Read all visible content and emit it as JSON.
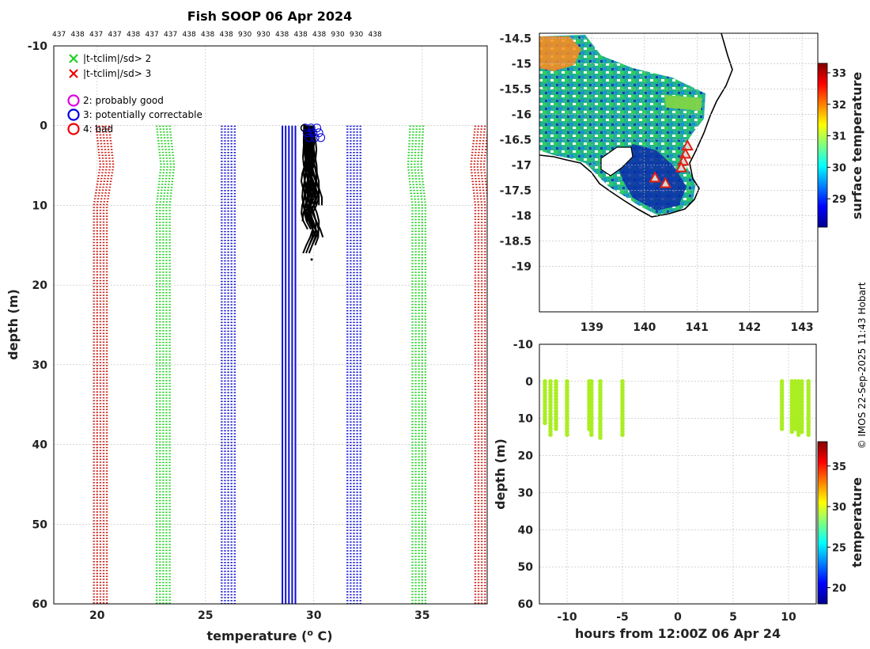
{
  "colors": {
    "bad": "#cc1a12",
    "clim2": "#1fd11f",
    "mean": "#1010d0",
    "profile": "#000000",
    "timeseries": "#aaee22",
    "land_line": "#000000",
    "flag_good": "#e000e0",
    "flag_corr": "#0000dd",
    "flag_bad": "#ee0000",
    "grid": "#bbbbbb"
  },
  "chart_data": [
    {
      "type": "line",
      "panel": "profile",
      "title": "Fish SOOP 06 Apr 2024",
      "xlabel": "temperature (",
      "xlabel_sup": "o",
      "xlabel_end": " C)",
      "ylabel": "depth (m)",
      "xlim": [
        18,
        38
      ],
      "ylim": [
        -10,
        60
      ],
      "xticks": [
        "20",
        "25",
        "30",
        "35"
      ],
      "yticks": [
        "-10",
        "0",
        "10",
        "20",
        "30",
        "40",
        "50",
        "60"
      ],
      "platform_ids": [
        "437",
        "438",
        "437",
        "437",
        "438",
        "437",
        "437",
        "438",
        "438",
        "438",
        "930",
        "930",
        "438",
        "438",
        "438",
        "930",
        "930",
        "438"
      ],
      "legend": [
        {
          "marker": "x",
          "color": "#1fd11f",
          "label": "|t-tclim|/sd> 2"
        },
        {
          "marker": "x",
          "color": "#ee0000",
          "label": "|t-tclim|/sd> 3"
        },
        {
          "marker": "o",
          "color": "#e000e0",
          "label": "2: probably good"
        },
        {
          "marker": "o",
          "color": "#0000dd",
          "label": "3: potentially correctable"
        },
        {
          "marker": "o",
          "color": "#ee0000",
          "label": "4: bad"
        }
      ],
      "series": [
        {
          "name": "clim -3sd",
          "style": "dotted",
          "color": "#cc1a12",
          "depth": [
            0,
            5,
            10,
            60
          ],
          "temperature": [
            20.3,
            20.5,
            20.2,
            20.2
          ]
        },
        {
          "name": "clim -2sd",
          "style": "dotted",
          "color": "#1fd11f",
          "depth": [
            0,
            5,
            10,
            60
          ],
          "temperature": [
            23.1,
            23.3,
            23.1,
            23.1
          ]
        },
        {
          "name": "clim mean",
          "style": "dotted",
          "color": "#1010d0",
          "depth": [
            0,
            60
          ],
          "temperature": [
            26.1,
            26.1
          ]
        },
        {
          "name": "mean",
          "style": "solid",
          "color": "#1010d0",
          "depth": [
            0,
            60
          ],
          "temperature": [
            28.9,
            28.9
          ]
        },
        {
          "name": "clim +1sd",
          "style": "dotted",
          "color": "#1010d0",
          "depth": [
            0,
            60
          ],
          "temperature": [
            31.9,
            31.9
          ]
        },
        {
          "name": "clim +2sd",
          "style": "dotted",
          "color": "#1fd11f",
          "depth": [
            0,
            5,
            10,
            60
          ],
          "temperature": [
            34.8,
            34.7,
            34.9,
            34.9
          ]
        },
        {
          "name": "clim +3sd",
          "style": "dotted",
          "color": "#cc1a12",
          "depth": [
            0,
            5,
            10,
            60
          ],
          "temperature": [
            37.8,
            37.6,
            37.8,
            37.8
          ]
        }
      ],
      "profiles_range": {
        "temperature": [
          29.4,
          30.3
        ],
        "depth": [
          0,
          16.8
        ]
      }
    },
    {
      "type": "heatmap",
      "panel": "map",
      "xlim": [
        138,
        143.3
      ],
      "ylim": [
        -19.9,
        -14.4
      ],
      "xticks": [
        "139",
        "140",
        "141",
        "142",
        "143"
      ],
      "yticks": [
        "-14.5",
        "-15",
        "-15.5",
        "-16",
        "-16.5",
        "-17",
        "-17.5",
        "-18",
        "-18.5",
        "-19"
      ],
      "colorbar_label": "surface temperature",
      "colorbar_range": [
        28.1,
        33.3
      ],
      "colorbar_ticks": [
        "29",
        "30",
        "31",
        "32",
        "33"
      ],
      "stations": [
        {
          "lon": 140.82,
          "lat": -16.62
        },
        {
          "lon": 140.78,
          "lat": -16.78
        },
        {
          "lon": 140.74,
          "lat": -16.92
        },
        {
          "lon": 140.7,
          "lat": -17.05
        },
        {
          "lon": 140.2,
          "lat": -17.25
        },
        {
          "lon": 140.4,
          "lat": -17.36
        }
      ]
    },
    {
      "type": "scatter",
      "panel": "timeseries",
      "xlabel": "hours from 12:00Z 06 Apr 24",
      "ylabel": "depth (m)",
      "xlim": [
        -12.5,
        12.5
      ],
      "ylim": [
        -10,
        60
      ],
      "xticks": [
        "-10",
        "-5",
        "0",
        "5",
        "10"
      ],
      "yticks": [
        "-10",
        "0",
        "10",
        "20",
        "30",
        "40",
        "50",
        "60"
      ],
      "colorbar_label": "temperature",
      "colorbar_range": [
        18,
        38
      ],
      "colorbar_ticks": [
        "20",
        "25",
        "30",
        "35"
      ],
      "casts": [
        {
          "hour": -12.0,
          "max_depth": 12
        },
        {
          "hour": -11.5,
          "max_depth": 15
        },
        {
          "hour": -11.0,
          "max_depth": 13
        },
        {
          "hour": -10.0,
          "max_depth": 15
        },
        {
          "hour": -8.0,
          "max_depth": 13
        },
        {
          "hour": -7.8,
          "max_depth": 15
        },
        {
          "hour": -7.0,
          "max_depth": 16
        },
        {
          "hour": -5.0,
          "max_depth": 15
        },
        {
          "hour": 9.4,
          "max_depth": 13
        },
        {
          "hour": 10.3,
          "max_depth": 14
        },
        {
          "hour": 10.6,
          "max_depth": 13
        },
        {
          "hour": 10.9,
          "max_depth": 15
        },
        {
          "hour": 11.2,
          "max_depth": 14
        },
        {
          "hour": 11.8,
          "max_depth": 15
        }
      ]
    }
  ],
  "credit": "© IMOS 22-Sep-2025 11:43 Hobart"
}
